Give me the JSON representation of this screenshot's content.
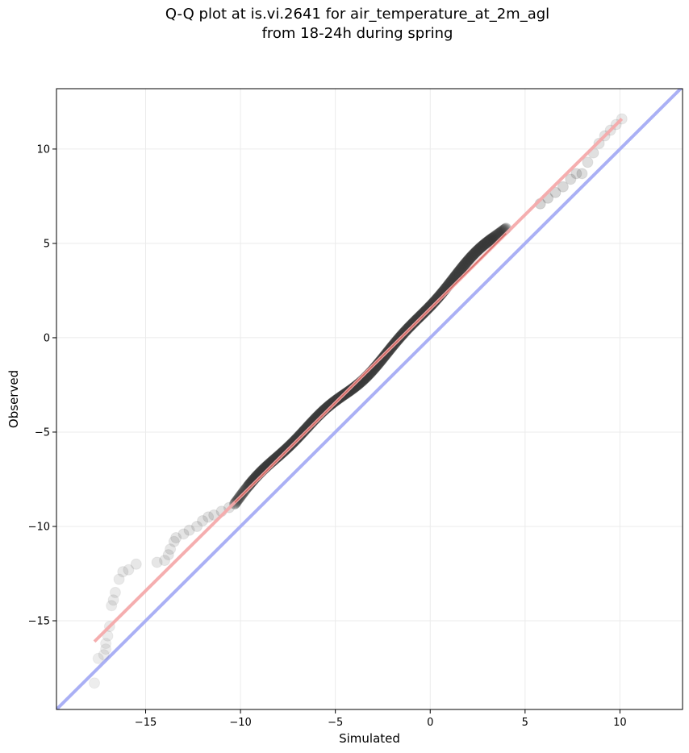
{
  "chart_data": {
    "type": "scatter",
    "title_lines": [
      "Q-Q plot at is.vi.2641 for air_temperature_at_2m_agl",
      "from 18-24h during spring"
    ],
    "xlabel": "Simulated",
    "ylabel": "Observed",
    "xlim": [
      -19.7,
      13.3
    ],
    "ylim": [
      -19.7,
      13.2
    ],
    "xticks": [
      -15,
      -10,
      -5,
      0,
      5,
      10
    ],
    "yticks": [
      -15,
      -10,
      -5,
      0,
      5,
      10
    ],
    "xtick_labels": [
      "−15",
      "−10",
      "−5",
      "0",
      "5",
      "10"
    ],
    "ytick_labels": [
      "−15",
      "−10",
      "−5",
      "0",
      "5",
      "10"
    ],
    "grid": true,
    "colors": {
      "identity_line": "#aab0f5",
      "fit_line": "#f4aaab",
      "fit_line_core": "#c0392b",
      "points": "#3a3a3a"
    },
    "identity_line": {
      "x": [
        -19.7,
        13.3
      ],
      "y": [
        -19.7,
        13.3
      ]
    },
    "fit_line": {
      "x": [
        -17.7,
        10.1
      ],
      "y": [
        -16.1,
        11.6
      ]
    },
    "tail_points": {
      "x": [
        -17.7,
        -17.5,
        -17.2,
        -17.1,
        -17.1,
        -17.0,
        -16.9,
        -16.8,
        -16.7,
        -16.6,
        -16.4,
        -16.2,
        -15.9,
        -15.5,
        -14.4,
        -14.0,
        -13.8,
        -13.7,
        -13.5,
        -13.4,
        -13.0,
        -12.7,
        -12.3,
        -12.0,
        -11.7,
        -11.4,
        -11.0,
        -10.6,
        -10.3
      ],
      "y": [
        -18.3,
        -17.0,
        -16.8,
        -16.5,
        -16.2,
        -15.8,
        -15.3,
        -14.2,
        -13.9,
        -13.5,
        -12.8,
        -12.4,
        -12.3,
        -12.0,
        -11.9,
        -11.8,
        -11.5,
        -11.2,
        -10.8,
        -10.6,
        -10.4,
        -10.2,
        -10.0,
        -9.7,
        -9.5,
        -9.4,
        -9.2,
        -9.0,
        -8.8
      ]
    },
    "upper_tail_points": {
      "x": [
        5.8,
        6.2,
        6.6,
        7.0,
        7.4,
        7.7,
        8.0,
        8.3,
        8.6,
        8.9,
        9.2,
        9.5,
        9.8,
        10.1
      ],
      "y": [
        7.1,
        7.4,
        7.7,
        8.0,
        8.4,
        8.7,
        8.7,
        9.3,
        9.8,
        10.3,
        10.7,
        11.0,
        11.3,
        11.6
      ]
    },
    "bulk_points": {
      "x": [
        -10.3,
        4.0
      ],
      "y": [
        -8.8,
        5.8
      ],
      "count": 480
    }
  }
}
